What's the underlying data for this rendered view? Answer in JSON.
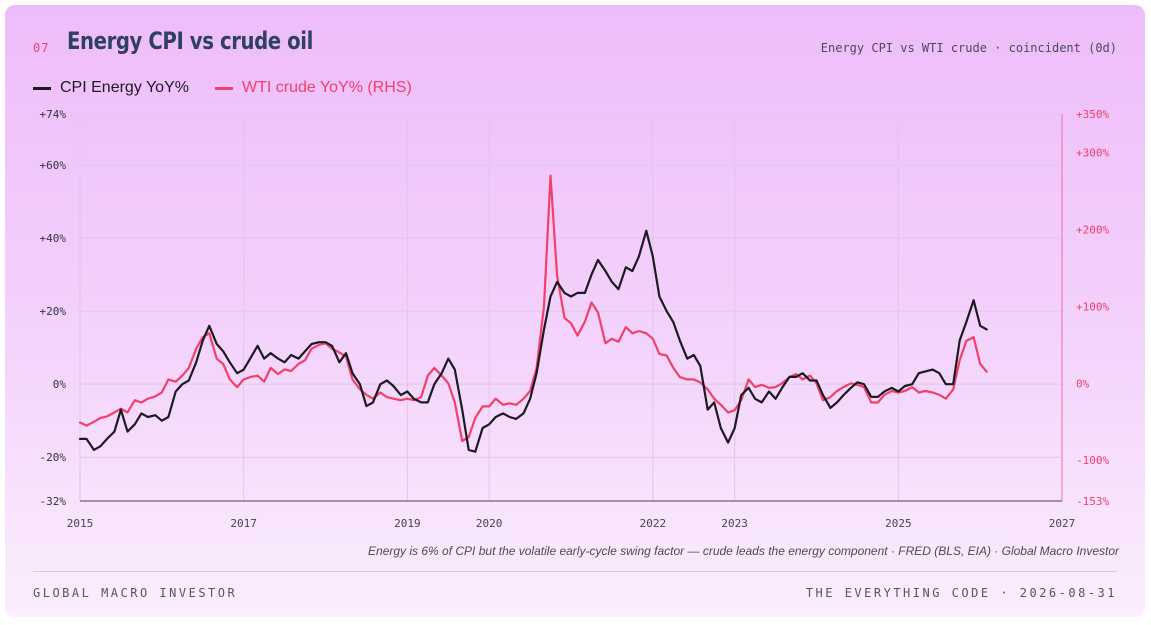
{
  "header": {
    "number": "07",
    "title": "Energy CPI vs crude oil",
    "subtitle": "Energy CPI vs WTI crude · coincident (0d)"
  },
  "caption": "Energy is 6% of CPI but the volatile early-cycle swing factor — crude leads the energy component · FRED (BLS, EIA) · Global Macro Investor",
  "footer": {
    "left": "GLOBAL MACRO INVESTOR",
    "right": "THE EVERYTHING CODE · 2026-08-31"
  },
  "colors": {
    "cpi": "#1c1a22",
    "wti": "#f0406b",
    "grid": "#e3c5ea",
    "axis": "#6b6170"
  },
  "chart_data": {
    "type": "line",
    "title": "Energy CPI vs crude oil",
    "xlim": [
      2015,
      2027
    ],
    "x_ticks": [
      2015,
      2017,
      2019,
      2020,
      2022,
      2023,
      2025,
      2027
    ],
    "x_tick_labels": [
      "2015",
      "2017",
      "2019",
      "2020",
      "2022",
      "2023",
      "2025",
      "2027"
    ],
    "y_left": {
      "lim": [
        -32,
        74
      ],
      "ticks": [
        -32,
        -20,
        0,
        20,
        40,
        60,
        74
      ],
      "tick_labels": [
        "-32%",
        "-20%",
        "0%",
        "+20%",
        "+40%",
        "+60%",
        "+74%"
      ]
    },
    "y_right": {
      "lim": [
        -153,
        350
      ],
      "ticks": [
        -153,
        -100,
        0,
        100,
        200,
        300,
        350
      ],
      "tick_labels": [
        "-153%",
        "-100%",
        "0%",
        "+100%",
        "+200%",
        "+300%",
        "+350%"
      ]
    },
    "grid": true,
    "legend_position": "top-left",
    "series": [
      {
        "name": "CPI Energy YoY%",
        "axis": "left",
        "points": [
          [
            2015.0,
            -15
          ],
          [
            2015.08,
            -15
          ],
          [
            2015.17,
            -18
          ],
          [
            2015.25,
            -17
          ],
          [
            2015.33,
            -15
          ],
          [
            2015.42,
            -13
          ],
          [
            2015.5,
            -7
          ],
          [
            2015.58,
            -13
          ],
          [
            2015.67,
            -11
          ],
          [
            2015.75,
            -8
          ],
          [
            2015.83,
            -9
          ],
          [
            2015.92,
            -8.5
          ],
          [
            2016.0,
            -10
          ],
          [
            2016.08,
            -9
          ],
          [
            2016.17,
            -2
          ],
          [
            2016.25,
            0
          ],
          [
            2016.33,
            1
          ],
          [
            2016.42,
            6
          ],
          [
            2016.5,
            12
          ],
          [
            2016.58,
            16
          ],
          [
            2016.67,
            11
          ],
          [
            2016.75,
            9
          ],
          [
            2016.83,
            6
          ],
          [
            2016.92,
            3
          ],
          [
            2017.0,
            4
          ],
          [
            2017.08,
            7
          ],
          [
            2017.17,
            10.5
          ],
          [
            2017.25,
            7
          ],
          [
            2017.33,
            8.5
          ],
          [
            2017.42,
            7
          ],
          [
            2017.5,
            6
          ],
          [
            2017.58,
            8
          ],
          [
            2017.67,
            7
          ],
          [
            2017.75,
            9
          ],
          [
            2017.83,
            11
          ],
          [
            2017.92,
            11.5
          ],
          [
            2018.0,
            11.5
          ],
          [
            2018.08,
            10.5
          ],
          [
            2018.17,
            6
          ],
          [
            2018.25,
            8.5
          ],
          [
            2018.33,
            3
          ],
          [
            2018.42,
            0
          ],
          [
            2018.5,
            -6
          ],
          [
            2018.58,
            -5
          ],
          [
            2018.67,
            0
          ],
          [
            2018.75,
            1
          ],
          [
            2018.83,
            -0.5
          ],
          [
            2018.92,
            -3
          ],
          [
            2019.0,
            -2
          ],
          [
            2019.08,
            -4
          ],
          [
            2019.17,
            -5
          ],
          [
            2019.25,
            -5
          ],
          [
            2019.33,
            0
          ],
          [
            2019.42,
            3
          ],
          [
            2019.5,
            7
          ],
          [
            2019.58,
            4
          ],
          [
            2019.67,
            -7
          ],
          [
            2019.75,
            -18
          ],
          [
            2019.83,
            -18.5
          ],
          [
            2019.92,
            -12
          ],
          [
            2020.0,
            -11
          ],
          [
            2020.08,
            -9
          ],
          [
            2020.17,
            -8
          ],
          [
            2020.25,
            -9
          ],
          [
            2020.33,
            -9.5
          ],
          [
            2020.42,
            -8
          ],
          [
            2020.5,
            -4
          ],
          [
            2020.58,
            3
          ],
          [
            2020.67,
            15
          ],
          [
            2020.75,
            24
          ],
          [
            2020.83,
            28
          ],
          [
            2020.92,
            25
          ],
          [
            2021.0,
            24
          ],
          [
            2021.08,
            25
          ],
          [
            2021.17,
            25
          ],
          [
            2021.25,
            30
          ],
          [
            2021.33,
            34
          ],
          [
            2021.42,
            31
          ],
          [
            2021.5,
            28
          ],
          [
            2021.58,
            26
          ],
          [
            2021.67,
            32
          ],
          [
            2021.75,
            31
          ],
          [
            2021.83,
            35
          ],
          [
            2021.92,
            42
          ],
          [
            2022.0,
            35
          ],
          [
            2022.08,
            24
          ],
          [
            2022.17,
            20
          ],
          [
            2022.25,
            17
          ],
          [
            2022.33,
            12
          ],
          [
            2022.42,
            7
          ],
          [
            2022.5,
            8
          ],
          [
            2022.58,
            5
          ],
          [
            2022.67,
            -7
          ],
          [
            2022.75,
            -5
          ],
          [
            2022.83,
            -12
          ],
          [
            2022.92,
            -16
          ],
          [
            2023.0,
            -12
          ],
          [
            2023.08,
            -3
          ],
          [
            2023.17,
            -1
          ],
          [
            2023.25,
            -4
          ],
          [
            2023.33,
            -5
          ],
          [
            2023.42,
            -2
          ],
          [
            2023.5,
            -4
          ],
          [
            2023.58,
            -1
          ],
          [
            2023.67,
            2
          ],
          [
            2023.75,
            2
          ],
          [
            2023.83,
            3
          ],
          [
            2023.92,
            1
          ],
          [
            2024.0,
            1
          ],
          [
            2024.08,
            -3
          ],
          [
            2024.17,
            -6.5
          ],
          [
            2024.25,
            -5
          ],
          [
            2024.33,
            -3
          ],
          [
            2024.42,
            -1
          ],
          [
            2024.5,
            0.5
          ],
          [
            2024.58,
            0
          ],
          [
            2024.67,
            -3.5
          ],
          [
            2024.75,
            -3.5
          ],
          [
            2024.83,
            -2
          ],
          [
            2024.92,
            -1
          ],
          [
            2025.0,
            -2
          ],
          [
            2025.08,
            -0.5
          ],
          [
            2025.17,
            0
          ],
          [
            2025.25,
            3
          ],
          [
            2025.33,
            3.5
          ],
          [
            2025.42,
            4
          ],
          [
            2025.5,
            3
          ],
          [
            2025.58,
            0
          ],
          [
            2025.67,
            0
          ],
          [
            2025.75,
            12
          ],
          [
            2025.83,
            17
          ],
          [
            2025.92,
            23
          ],
          [
            2026.0,
            16
          ],
          [
            2026.08,
            15
          ]
        ]
      },
      {
        "name": "WTI crude YoY% (RHS)",
        "axis": "right",
        "points": [
          [
            2015.0,
            -51
          ],
          [
            2015.08,
            -55
          ],
          [
            2015.17,
            -50
          ],
          [
            2015.25,
            -45
          ],
          [
            2015.33,
            -43
          ],
          [
            2015.42,
            -38
          ],
          [
            2015.5,
            -33
          ],
          [
            2015.58,
            -38
          ],
          [
            2015.67,
            -22
          ],
          [
            2015.75,
            -25
          ],
          [
            2015.83,
            -20
          ],
          [
            2015.92,
            -17
          ],
          [
            2016.0,
            -12
          ],
          [
            2016.08,
            5
          ],
          [
            2016.17,
            2
          ],
          [
            2016.25,
            10
          ],
          [
            2016.33,
            20
          ],
          [
            2016.42,
            45
          ],
          [
            2016.5,
            60
          ],
          [
            2016.58,
            65
          ],
          [
            2016.67,
            32
          ],
          [
            2016.75,
            25
          ],
          [
            2016.83,
            5
          ],
          [
            2016.92,
            -5
          ],
          [
            2017.0,
            5
          ],
          [
            2017.08,
            8
          ],
          [
            2017.17,
            10
          ],
          [
            2017.25,
            2
          ],
          [
            2017.33,
            20
          ],
          [
            2017.42,
            12
          ],
          [
            2017.5,
            18
          ],
          [
            2017.58,
            16
          ],
          [
            2017.67,
            25
          ],
          [
            2017.75,
            30
          ],
          [
            2017.83,
            45
          ],
          [
            2017.92,
            50
          ],
          [
            2018.0,
            52
          ],
          [
            2018.08,
            45
          ],
          [
            2018.17,
            40
          ],
          [
            2018.25,
            35
          ],
          [
            2018.33,
            5
          ],
          [
            2018.42,
            -8
          ],
          [
            2018.5,
            -15
          ],
          [
            2018.58,
            -20
          ],
          [
            2018.67,
            -12
          ],
          [
            2018.75,
            -18
          ],
          [
            2018.83,
            -20
          ],
          [
            2018.92,
            -22
          ],
          [
            2019.0,
            -20
          ],
          [
            2019.08,
            -22
          ],
          [
            2019.17,
            -18
          ],
          [
            2019.25,
            10
          ],
          [
            2019.33,
            20
          ],
          [
            2019.42,
            10
          ],
          [
            2019.5,
            0
          ],
          [
            2019.58,
            -25
          ],
          [
            2019.67,
            -75
          ],
          [
            2019.75,
            -70
          ],
          [
            2019.83,
            -45
          ],
          [
            2019.92,
            -30
          ],
          [
            2020.0,
            -30
          ],
          [
            2020.08,
            -20
          ],
          [
            2020.17,
            -28
          ],
          [
            2020.25,
            -26
          ],
          [
            2020.33,
            -28
          ],
          [
            2020.42,
            -20
          ],
          [
            2020.5,
            -10
          ],
          [
            2020.58,
            20
          ],
          [
            2020.67,
            100
          ],
          [
            2020.75,
            270
          ],
          [
            2020.83,
            140
          ],
          [
            2020.92,
            85
          ],
          [
            2021.0,
            78
          ],
          [
            2021.08,
            62
          ],
          [
            2021.17,
            80
          ],
          [
            2021.25,
            105
          ],
          [
            2021.33,
            92
          ],
          [
            2021.42,
            52
          ],
          [
            2021.5,
            58
          ],
          [
            2021.58,
            54
          ],
          [
            2021.67,
            73
          ],
          [
            2021.75,
            65
          ],
          [
            2021.83,
            68
          ],
          [
            2021.92,
            65
          ],
          [
            2022.0,
            58
          ],
          [
            2022.08,
            38
          ],
          [
            2022.17,
            36
          ],
          [
            2022.25,
            20
          ],
          [
            2022.33,
            8
          ],
          [
            2022.42,
            5
          ],
          [
            2022.5,
            5
          ],
          [
            2022.58,
            1
          ],
          [
            2022.67,
            -8
          ],
          [
            2022.75,
            -20
          ],
          [
            2022.83,
            -28
          ],
          [
            2022.92,
            -38
          ],
          [
            2023.0,
            -35
          ],
          [
            2023.08,
            -22
          ],
          [
            2023.17,
            5
          ],
          [
            2023.25,
            -5
          ],
          [
            2023.33,
            -2
          ],
          [
            2023.42,
            -6
          ],
          [
            2023.5,
            -5
          ],
          [
            2023.58,
            0
          ],
          [
            2023.67,
            8
          ],
          [
            2023.75,
            12
          ],
          [
            2023.83,
            5
          ],
          [
            2023.92,
            10
          ],
          [
            2024.0,
            0
          ],
          [
            2024.08,
            -22
          ],
          [
            2024.17,
            -18
          ],
          [
            2024.25,
            -10
          ],
          [
            2024.33,
            -5
          ],
          [
            2024.42,
            0
          ],
          [
            2024.5,
            -2
          ],
          [
            2024.58,
            -5
          ],
          [
            2024.67,
            -25
          ],
          [
            2024.75,
            -25
          ],
          [
            2024.83,
            -15
          ],
          [
            2024.92,
            -10
          ],
          [
            2025.0,
            -12
          ],
          [
            2025.08,
            -10
          ],
          [
            2025.17,
            -5
          ],
          [
            2025.25,
            -12
          ],
          [
            2025.33,
            -10
          ],
          [
            2025.42,
            -12
          ],
          [
            2025.5,
            -15
          ],
          [
            2025.58,
            -20
          ],
          [
            2025.67,
            -8
          ],
          [
            2025.75,
            30
          ],
          [
            2025.83,
            55
          ],
          [
            2025.92,
            60
          ],
          [
            2026.0,
            25
          ],
          [
            2026.08,
            15
          ]
        ]
      }
    ]
  }
}
